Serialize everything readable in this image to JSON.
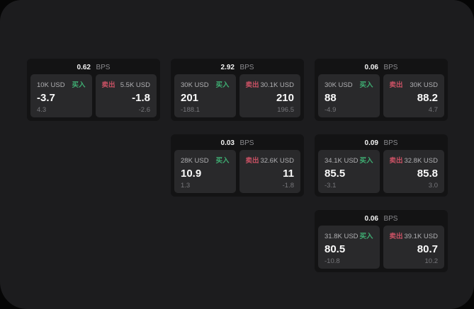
{
  "labels": {
    "bps_unit": "BPS",
    "buy": "买入",
    "sell": "卖出"
  },
  "colors": {
    "buy": "#3fae73",
    "sell": "#c95164",
    "window_bg": "#1c1c1e",
    "card_bg": "#131314",
    "panel_bg": "#29292b"
  },
  "cards": [
    {
      "bps": "0.62",
      "buy": {
        "amount": "10K USD",
        "price": "-3.7",
        "change": "4.3"
      },
      "sell": {
        "amount": "5.5K USD",
        "price": "-1.8",
        "change": "-2.6"
      }
    },
    {
      "bps": "2.92",
      "buy": {
        "amount": "30K USD",
        "price": "201",
        "change": "-188.1"
      },
      "sell": {
        "amount": "30.1K USD",
        "price": "210",
        "change": "196.5"
      }
    },
    {
      "bps": "0.06",
      "buy": {
        "amount": "30K USD",
        "price": "88",
        "change": "-4.9"
      },
      "sell": {
        "amount": "30K USD",
        "price": "88.2",
        "change": "4.7"
      }
    },
    {
      "bps": "0.03",
      "buy": {
        "amount": "28K USD",
        "price": "10.9",
        "change": "1.3"
      },
      "sell": {
        "amount": "32.6K USD",
        "price": "11",
        "change": "-1.8"
      }
    },
    {
      "bps": "0.09",
      "buy": {
        "amount": "34.1K USD",
        "price": "85.5",
        "change": "-3.1"
      },
      "sell": {
        "amount": "32.8K USD",
        "price": "85.8",
        "change": "3.0"
      }
    },
    {
      "bps": "0.06",
      "buy": {
        "amount": "31.8K USD",
        "price": "80.5",
        "change": "-10.8"
      },
      "sell": {
        "amount": "39.1K USD",
        "price": "80.7",
        "change": "10.2"
      }
    }
  ]
}
